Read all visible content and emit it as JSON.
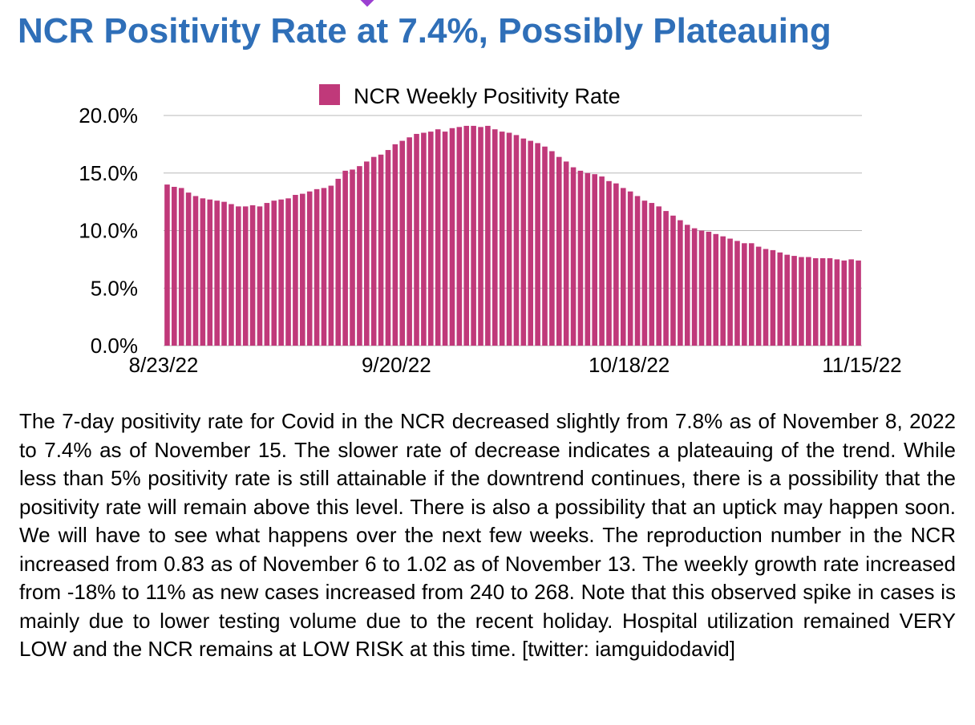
{
  "title": "NCR Positivity Rate at 7.4%, Possibly Plateauing",
  "chart_data": {
    "type": "bar",
    "title": "",
    "series": [
      {
        "name": "NCR Weekly Positivity Rate",
        "color": "#c0397a",
        "values": [
          14.0,
          13.8,
          13.7,
          13.3,
          13.0,
          12.8,
          12.7,
          12.6,
          12.5,
          12.3,
          12.1,
          12.1,
          12.2,
          12.1,
          12.4,
          12.6,
          12.7,
          12.8,
          13.1,
          13.2,
          13.4,
          13.6,
          13.7,
          13.9,
          14.5,
          15.2,
          15.3,
          15.6,
          16.0,
          16.4,
          16.6,
          17.0,
          17.5,
          17.8,
          18.1,
          18.4,
          18.5,
          18.6,
          18.8,
          18.6,
          18.9,
          19.0,
          19.1,
          19.1,
          19.0,
          19.1,
          18.8,
          18.6,
          18.5,
          18.3,
          18.0,
          17.8,
          17.6,
          17.3,
          16.9,
          16.4,
          16.0,
          15.5,
          15.2,
          15.0,
          14.9,
          14.7,
          14.3,
          14.1,
          13.7,
          13.4,
          13.0,
          12.6,
          12.4,
          12.1,
          11.7,
          11.3,
          10.9,
          10.5,
          10.2,
          10.0,
          9.9,
          9.7,
          9.5,
          9.3,
          9.1,
          8.9,
          8.9,
          8.6,
          8.4,
          8.3,
          8.1,
          7.9,
          7.8,
          7.7,
          7.7,
          7.6,
          7.6,
          7.6,
          7.5,
          7.4,
          7.5,
          7.4
        ]
      }
    ],
    "xticks": [
      "8/23/22",
      "9/20/22",
      "10/18/22",
      "11/15/22"
    ],
    "xlabel": "",
    "ylabel": "",
    "yticks": [
      "0.0%",
      "5.0%",
      "10.0%",
      "15.0%",
      "20.0%"
    ],
    "ylim": [
      0,
      20
    ],
    "grid": true,
    "legend": "top-center"
  },
  "body_text": "The 7-day positivity rate for Covid in the NCR decreased slightly from 7.8% as of November 8, 2022 to 7.4% as of November 15. The slower rate of decrease indicates a plateauing of the trend. While less than 5% positivity rate is still attainable if the downtrend continues, there is a possibility that the positivity rate will remain above this level. There is also a possibility that an uptick may happen soon. We will have to see what happens over the next few weeks. The reproduction number in the NCR increased from 0.83 as of November 6 to 1.02 as of November 13. The weekly growth rate increased from -18% to 11% as new cases increased from 240 to 268. Note that this observed spike in cases is mainly due to lower testing volume due to the recent holiday. Hospital utilization remained VERY LOW and the NCR remains at LOW RISK at this time. [twitter: iamguidodavid]"
}
